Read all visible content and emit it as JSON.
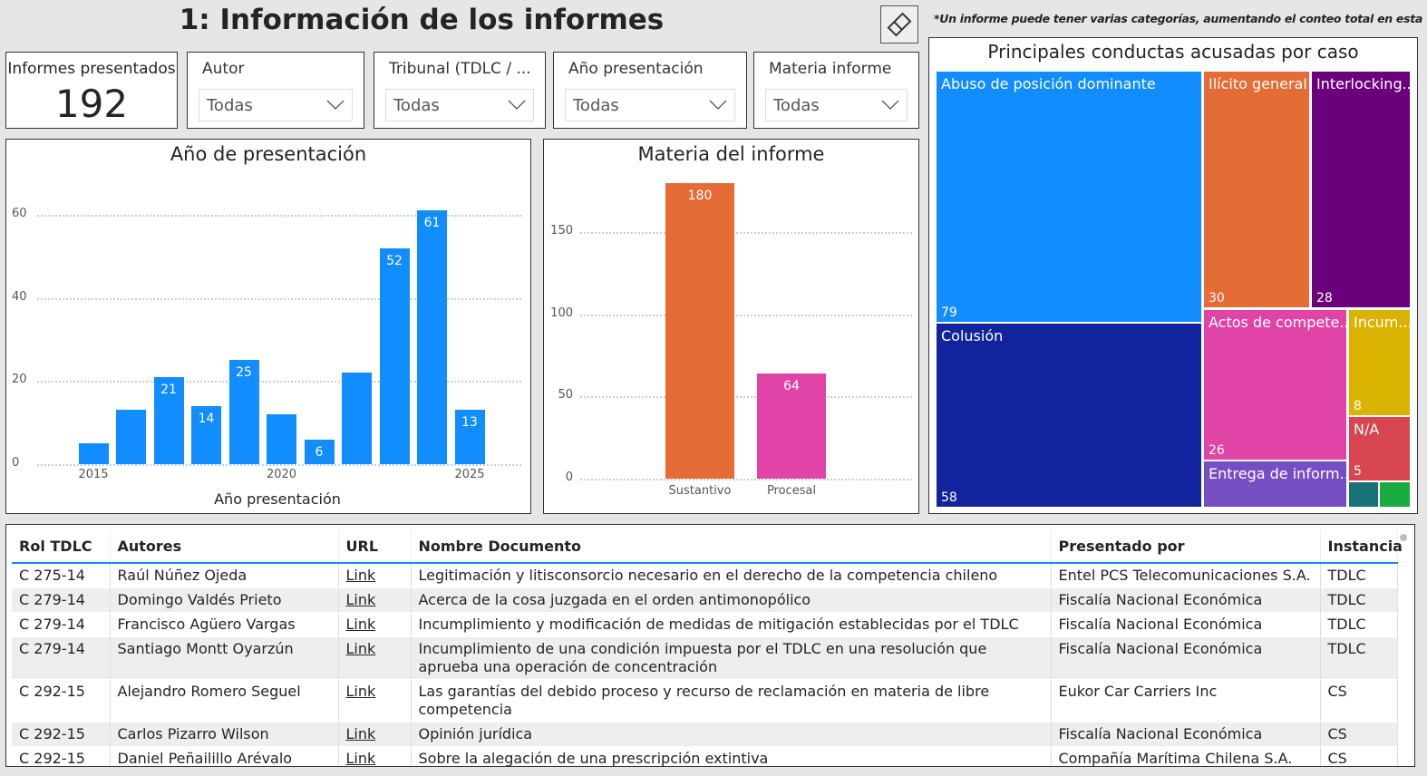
{
  "header": {
    "title": "1: Información de los informes",
    "eraser_icon": "eraser-icon",
    "note": "*Un informe puede tener varias categorías, aumentando el conteo total en esta figura"
  },
  "kpi": {
    "label": "Informes presentados",
    "value": "192"
  },
  "filters": [
    {
      "label": "Autor",
      "value": "Todas"
    },
    {
      "label": "Tribunal (TDLC / ...",
      "value": "Todas"
    },
    {
      "label": "Año presentación",
      "value": "Todas"
    },
    {
      "label": "Materia informe",
      "value": "Todas"
    }
  ],
  "chart_data": [
    {
      "type": "bar",
      "title": "Año de presentación",
      "xlabel": "Año presentación",
      "ylabel": "",
      "color": "#118dff",
      "x": [
        2015,
        2016,
        2017,
        2018,
        2019,
        2020,
        2021,
        2022,
        2023,
        2024,
        2025
      ],
      "values": [
        5,
        13,
        21,
        14,
        25,
        12,
        6,
        22,
        52,
        61,
        13
      ],
      "data_labels": {
        "2017": "21",
        "2018": "14",
        "2019": "25",
        "2021": "6",
        "2023": "52",
        "2024": "61",
        "2025": "13"
      },
      "xticks": [
        "2015",
        "2020",
        "2025"
      ],
      "yticks": [
        "0",
        "20",
        "40",
        "60"
      ],
      "ylim": [
        0,
        60
      ],
      "grid": true
    },
    {
      "type": "bar",
      "title": "Materia del informe",
      "categories": [
        "Sustantivo",
        "Procesal"
      ],
      "values": [
        180,
        64
      ],
      "colors": [
        "#e66c37",
        "#e044a7"
      ],
      "yticks": [
        "0",
        "50",
        "100",
        "150"
      ],
      "ylim": [
        0,
        180
      ],
      "grid": true
    },
    {
      "type": "treemap",
      "title": "Principales conductas acusadas por caso",
      "items": [
        {
          "label": "Abuso de posición dominante",
          "value": 79,
          "color": "#118dff"
        },
        {
          "label": "Colusión",
          "value": 58,
          "color": "#12239e"
        },
        {
          "label": "Ilícito general",
          "value": 30,
          "color": "#e66c37"
        },
        {
          "label": "Interlocking...",
          "value": 28,
          "color": "#6b007b"
        },
        {
          "label": "Actos de compete...",
          "value": 26,
          "color": "#e044a7"
        },
        {
          "label": "Incum...",
          "value": 8,
          "color": "#d9b300"
        },
        {
          "label": "N/A",
          "value": 5,
          "color": "#d64550"
        },
        {
          "label": "Entrega de inform...",
          "color": "#744ec2"
        },
        {
          "color": "#197278"
        },
        {
          "color": "#1aab40"
        }
      ]
    }
  ],
  "table": {
    "columns": [
      "Rol TDLC",
      "Autores",
      "URL",
      "Nombre Documento",
      "Presentado por",
      "Instancia"
    ],
    "rows": [
      [
        "C 275-14",
        "Raúl Núñez Ojeda",
        "Link",
        "Legitimación y litisconsorcio necesario en el derecho de la competencia chileno",
        "Entel PCS Telecomunicaciones S.A.",
        "TDLC"
      ],
      [
        "C 279-14",
        "Domingo Valdés Prieto",
        "Link",
        "Acerca de la cosa juzgada en el orden antimonopólico",
        "Fiscalía Nacional Económica",
        "TDLC"
      ],
      [
        "C 279-14",
        "Francisco Agüero Vargas",
        "Link",
        "Incumplimiento y modificación de medidas de mitigación establecidas por el TDLC",
        "Fiscalía Nacional Económica",
        "TDLC"
      ],
      [
        "C 279-14",
        "Santiago Montt Oyarzún",
        "Link",
        "Incumplimiento de una condición impuesta por el TDLC en una resolución que aprueba una operación de concentración",
        "Fiscalía Nacional Económica",
        "TDLC"
      ],
      [
        "C 292-15",
        "Alejandro Romero Seguel",
        "Link",
        "Las garantías del debido proceso y recurso de reclamación en materia de libre competencia",
        "Eukor Car Carriers Inc",
        "CS"
      ],
      [
        "C 292-15",
        "Carlos Pizarro Wilson",
        "Link",
        "Opinión jurídica",
        "Fiscalía Nacional Económica",
        "CS"
      ],
      [
        "C 292-15",
        "Daniel Peñailillo Arévalo",
        "Link",
        "Sobre la alegación de una prescripción extintiva",
        "Compañía Marítima Chilena S.A.",
        "CS"
      ]
    ]
  }
}
